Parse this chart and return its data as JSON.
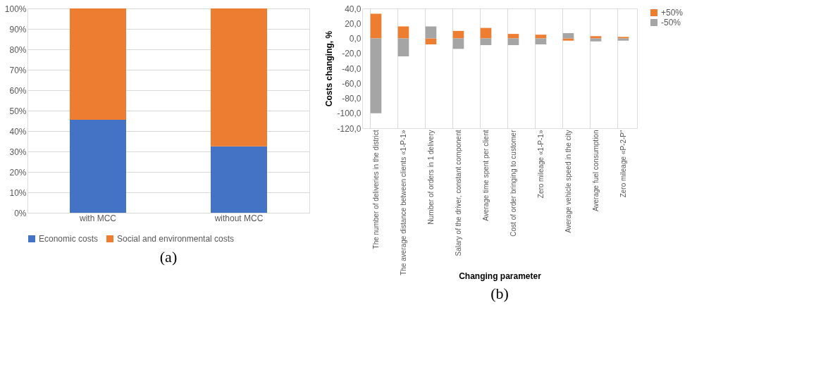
{
  "chart_data": [
    {
      "type": "bar",
      "stacked": true,
      "categories": [
        "with MCC",
        "without MCC"
      ],
      "series": [
        {
          "name": "Economic costs",
          "color": "#4472c4",
          "values": [
            45.5,
            32.5
          ]
        },
        {
          "name": "Social and environmental costs",
          "color": "#ed7d31",
          "values": [
            54.5,
            67.5
          ]
        }
      ],
      "ylim": [
        0,
        100
      ],
      "yticks": [
        {
          "value": 0,
          "label": "0%"
        },
        {
          "value": 10,
          "label": "10%"
        },
        {
          "value": 20,
          "label": "20%"
        },
        {
          "value": 30,
          "label": "30%"
        },
        {
          "value": 40,
          "label": "40%"
        },
        {
          "value": 50,
          "label": "50%"
        },
        {
          "value": 60,
          "label": "60%"
        },
        {
          "value": 70,
          "label": "70%"
        },
        {
          "value": 80,
          "label": "80%"
        },
        {
          "value": 90,
          "label": "90%"
        },
        {
          "value": 100,
          "label": "100%"
        }
      ],
      "grid": "y",
      "legend": "bottom",
      "annotations": [
        "(a)"
      ]
    },
    {
      "type": "bar",
      "stacked": true,
      "xlabel": "Changing parameter",
      "ylabel": "Costs changing, %",
      "categories": [
        "The number of deliveries in the district",
        "The average distance between clients «1-P-1»",
        "Number of orders in 1 delivery",
        "Salary of the driver, constant component",
        "Average time spent per client",
        "Cost of order bringing to customer",
        "Zero mileage «1-P-1»",
        "Average vehicle speed in the city",
        "Average fuel consumption",
        "Zero mileage «P-2-P\""
      ],
      "series": [
        {
          "name": "+50%",
          "color": "#ed7d31",
          "values": [
            33,
            16,
            -8,
            10,
            14,
            6,
            5,
            -3,
            3,
            2
          ]
        },
        {
          "name": "-50%",
          "color": "#a5a5a5",
          "values": [
            -100,
            -24,
            16,
            -14,
            -9,
            -9,
            -8,
            7,
            -4,
            -3
          ]
        }
      ],
      "ylim": [
        -120,
        40
      ],
      "yticks": [
        {
          "value": -120,
          "label": "-120,0"
        },
        {
          "value": -100,
          "label": "-100,0"
        },
        {
          "value": -80,
          "label": "-80,0"
        },
        {
          "value": -60,
          "label": "-60,0"
        },
        {
          "value": -40,
          "label": "-40,0"
        },
        {
          "value": -20,
          "label": "-20,0"
        },
        {
          "value": 0,
          "label": "0,0"
        },
        {
          "value": 20,
          "label": "20,0"
        },
        {
          "value": 40,
          "label": "40,0"
        }
      ],
      "grid": "x",
      "legend": "right",
      "annotations": [
        "(b)"
      ]
    }
  ]
}
